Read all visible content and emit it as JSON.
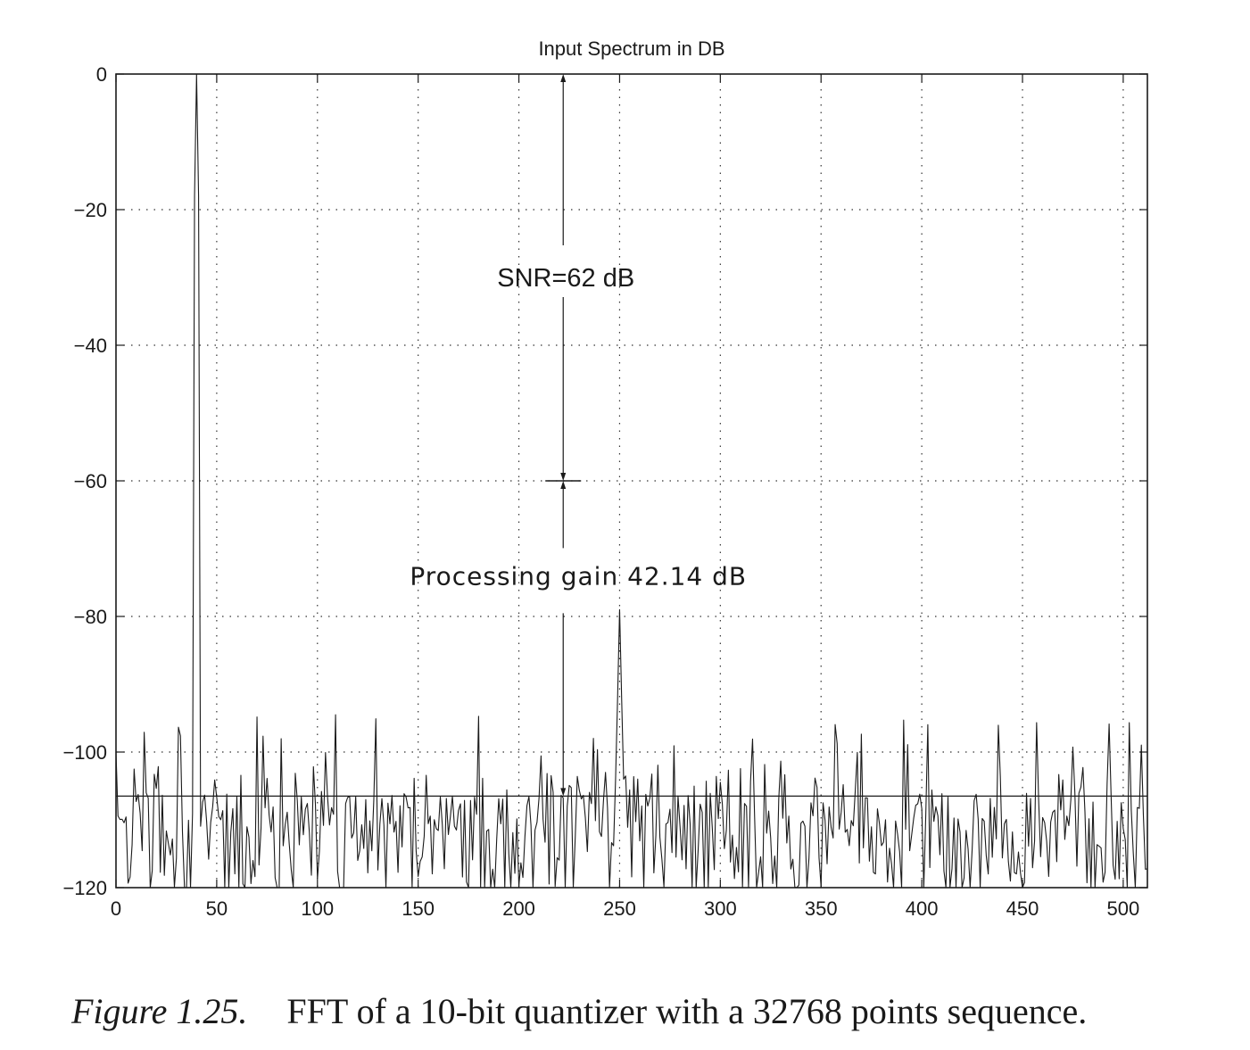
{
  "chart_data": {
    "type": "line",
    "title": "Input Spectrum in DB",
    "xlabel": "",
    "ylabel": "",
    "xlim": [
      0,
      512
    ],
    "ylim": [
      -120,
      0
    ],
    "xticks": [
      0,
      50,
      100,
      150,
      200,
      250,
      300,
      350,
      400,
      450,
      500
    ],
    "yticks": [
      0,
      -20,
      -40,
      -60,
      -80,
      -100,
      -120
    ],
    "grid": true,
    "grid_style": "dotted",
    "line_color": "#1a1a1a",
    "signal_peak": {
      "x": 40,
      "y": 0
    },
    "harmonic_peak": {
      "x": 250,
      "y": -79
    },
    "noise_floor_level": -106.5,
    "noise_range": [
      -120,
      -93
    ],
    "annotations": [
      {
        "text": "SNR=62 dB",
        "x": 222,
        "y": -30
      },
      {
        "text": "Processing gain 42.14 dB",
        "x": 222,
        "y": -74
      }
    ],
    "snr_arrow": {
      "x": 222,
      "y_from": 0,
      "y_to": -60
    },
    "processing_gain_arrow": {
      "x": 222,
      "y_from": -60,
      "y_to": -106.5
    },
    "reference_line_y": -60
  },
  "caption": {
    "label": "Figure 1.25.",
    "text": "FFT of a 10-bit quantizer with a 32768 points sequence."
  }
}
